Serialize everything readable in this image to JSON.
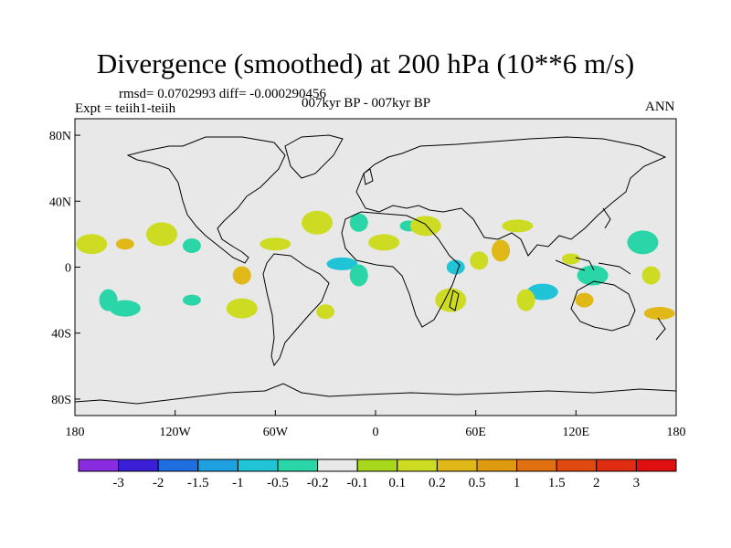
{
  "title": "Divergence (smoothed) at 200 hPa (10**6 m/s)",
  "stats": "rmsd= 0.0702993 diff= -0.000290456",
  "experiment": "Expt = teiih1-teiih",
  "period": "007kyr BP - 007kyr BP",
  "season": "ANN",
  "map": {
    "lon_ticks": [
      "180",
      "120W",
      "60W",
      "0",
      "60E",
      "120E",
      "180"
    ],
    "lat_ticks": [
      "80N",
      "40N",
      "0",
      "40S",
      "80S"
    ],
    "background_color": "#e8e8e8",
    "coast_color": "#000000"
  },
  "colorbar": {
    "colors": [
      "#8a2be2",
      "#3a1fd6",
      "#1f6ee0",
      "#1fa0e0",
      "#21c4d6",
      "#2ad6a8",
      "#e8e8e8",
      "#a8d81c",
      "#cddc22",
      "#e0b818",
      "#e09a10",
      "#e07010",
      "#e04a10",
      "#e02c10",
      "#e01010"
    ],
    "labels": [
      "-3",
      "-2",
      "-1.5",
      "-1",
      "-0.5",
      "-0.2",
      "-0.1",
      "0.1",
      "0.2",
      "0.5",
      "1",
      "1.5",
      "2",
      "3"
    ]
  },
  "anomalies": [
    {
      "lon": -150,
      "lat": 14,
      "level": 0.5
    },
    {
      "lon": -170,
      "lat": 14,
      "level": 0.2
    },
    {
      "lon": -110,
      "lat": 13,
      "level": -0.2
    },
    {
      "lon": -128,
      "lat": 20,
      "level": 0.2
    },
    {
      "lon": -80,
      "lat": -5,
      "level": 0.5
    },
    {
      "lon": -20,
      "lat": 2,
      "level": -0.5
    },
    {
      "lon": -10,
      "lat": -5,
      "level": -0.2
    },
    {
      "lon": 5,
      "lat": 15,
      "level": 0.2
    },
    {
      "lon": 20,
      "lat": 25,
      "level": -0.2
    },
    {
      "lon": 30,
      "lat": 25,
      "level": 0.2
    },
    {
      "lon": 48,
      "lat": 0,
      "level": -0.5
    },
    {
      "lon": 45,
      "lat": -20,
      "level": 0.2
    },
    {
      "lon": 62,
      "lat": 4,
      "level": 0.2
    },
    {
      "lon": 85,
      "lat": 25,
      "level": 0.2
    },
    {
      "lon": 75,
      "lat": 10,
      "level": 0.5
    },
    {
      "lon": 100,
      "lat": -15,
      "level": -0.5
    },
    {
      "lon": 117,
      "lat": 5,
      "level": 0.2
    },
    {
      "lon": 130,
      "lat": -5,
      "level": -0.2
    },
    {
      "lon": 125,
      "lat": -20,
      "level": 0.5
    },
    {
      "lon": 160,
      "lat": 15,
      "level": -0.2
    },
    {
      "lon": 165,
      "lat": -5,
      "level": 0.2
    },
    {
      "lon": 170,
      "lat": -28,
      "level": 0.5
    },
    {
      "lon": -160,
      "lat": -20,
      "level": -0.2
    },
    {
      "lon": -150,
      "lat": -25,
      "level": -0.2
    },
    {
      "lon": -110,
      "lat": -20,
      "level": -0.2
    },
    {
      "lon": -80,
      "lat": -25,
      "level": 0.2
    },
    {
      "lon": -30,
      "lat": -27,
      "level": 0.2
    },
    {
      "lon": -35,
      "lat": 27,
      "level": 0.2
    },
    {
      "lon": -10,
      "lat": 27,
      "level": -0.2
    },
    {
      "lon": -60,
      "lat": 14,
      "level": 0.2
    },
    {
      "lon": 90,
      "lat": -20,
      "level": 0.2
    }
  ]
}
